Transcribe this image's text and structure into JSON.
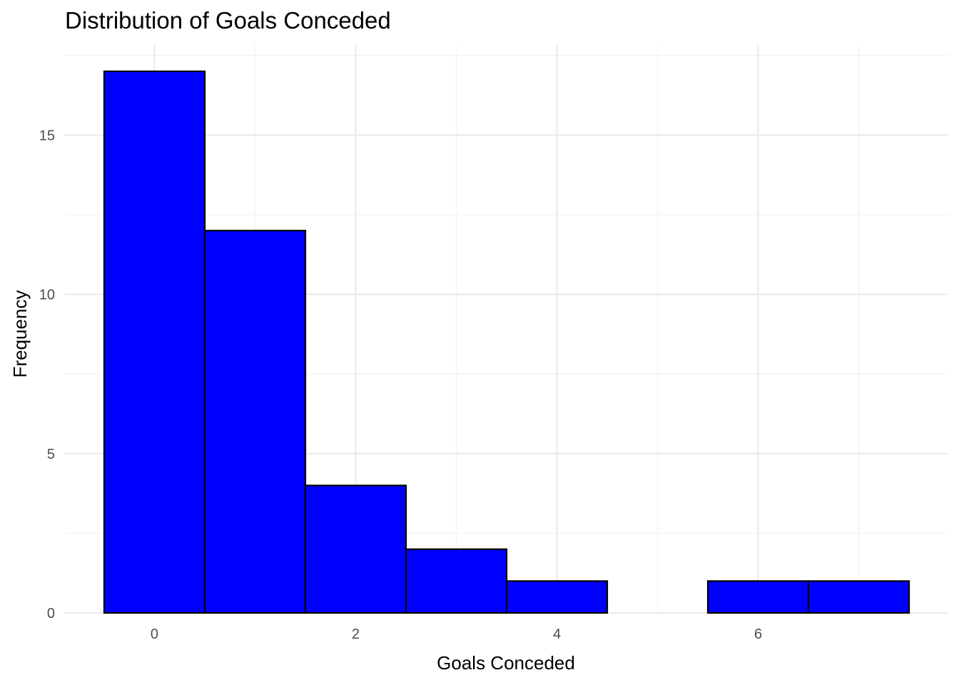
{
  "chart_data": {
    "type": "bar",
    "title": "Distribution of Goals Conceded",
    "xlabel": "Goals Conceded",
    "ylabel": "Frequency",
    "x": [
      0,
      1,
      2,
      3,
      4,
      5,
      6,
      7
    ],
    "values": [
      17,
      12,
      4,
      2,
      1,
      0,
      1,
      1
    ],
    "bin_width": 1,
    "xlim": [
      -0.89,
      7.89
    ],
    "ylim": [
      0,
      17.85
    ],
    "x_ticks": [
      0,
      2,
      4,
      6
    ],
    "y_ticks": [
      0,
      5,
      10,
      15
    ],
    "grid": true,
    "legend": "none",
    "bar_fill": "#0000ff",
    "bar_outline": "#000000"
  }
}
